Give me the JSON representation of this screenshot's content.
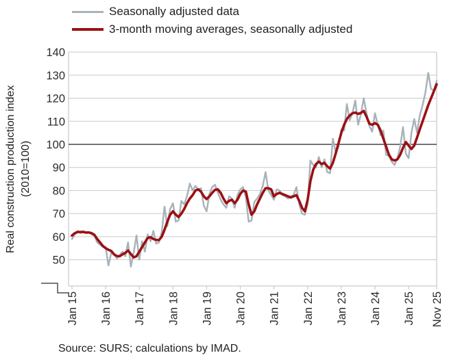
{
  "legend": {
    "items": [
      {
        "label": "Seasonally adjusted data",
        "color": "#a8b3ba"
      },
      {
        "label": "3-month moving averages, seasonally adjusted",
        "color": "#9b1014"
      }
    ]
  },
  "y_axis": {
    "title_line1": "Real construction production index",
    "title_line2": "(2010=100)",
    "ticks": [
      140,
      130,
      120,
      110,
      100,
      90,
      80,
      70,
      60,
      50
    ],
    "baseline_value": 100,
    "axis_break": true
  },
  "source": "Source: SURS; calculations by IMAD.",
  "colors": {
    "grid": "#c9c9c9",
    "baseline": "#44444c",
    "axis_text": "#2b2b2b",
    "break_mark": "#4d4d4d",
    "series_gray": "#a8b3ba",
    "series_red": "#9b1014"
  },
  "chart_data": {
    "type": "line",
    "title": "",
    "xlabel": "",
    "ylabel": "Real construction production index (2010=100)",
    "x_unit": "month",
    "n_months": 131,
    "x_start_label": "Jan 15",
    "x_end_label": "Nov 25",
    "ylim": [
      50,
      140
    ],
    "y_axis_break": true,
    "grid": "horizontal",
    "legend_position": "top-left",
    "baseline": 100,
    "x_ticks": [
      {
        "label": "Jan 15",
        "m": 0
      },
      {
        "label": "Jan 16",
        "m": 12
      },
      {
        "label": "Jan 17",
        "m": 24
      },
      {
        "label": "Jan 18",
        "m": 36
      },
      {
        "label": "Jan 19",
        "m": 48
      },
      {
        "label": "Jan 20",
        "m": 60
      },
      {
        "label": "Jan 21",
        "m": 72
      },
      {
        "label": "Jan 22",
        "m": 84
      },
      {
        "label": "Jan 23",
        "m": 96
      },
      {
        "label": "Jan 24",
        "m": 108
      },
      {
        "label": "Jan 25",
        "m": 120
      },
      {
        "label": "Nov 25",
        "m": 130
      }
    ],
    "series": [
      {
        "name": "Seasonally adjusted data",
        "color": "#a8b3ba",
        "width": 2.5,
        "values": [
          59,
          61,
          62.5,
          61.5,
          62.5,
          61.5,
          62,
          61,
          60.5,
          57.5,
          56.5,
          55.5,
          55.5,
          47.5,
          53,
          52.5,
          50.5,
          52,
          53.5,
          51.5,
          57.5,
          47,
          53,
          60.5,
          50,
          58,
          53.5,
          61,
          58,
          62.5,
          57,
          57.5,
          62,
          73,
          64.5,
          72,
          74.5,
          66.5,
          67,
          75.5,
          74,
          77.5,
          83,
          80,
          82,
          80.5,
          81,
          73.5,
          71,
          78.5,
          81.5,
          82.5,
          79,
          76,
          74,
          72.5,
          77.5,
          76.5,
          72.5,
          78,
          80.5,
          81.5,
          77,
          66.5,
          67,
          75,
          76.5,
          78.5,
          82,
          88,
          80,
          78,
          76,
          80.5,
          80,
          78,
          77.5,
          76.5,
          77.5,
          78,
          81.5,
          74,
          70,
          69.5,
          74,
          93,
          91,
          90,
          94.5,
          90,
          93.5,
          88,
          87.5,
          102.5,
          96.5,
          99,
          106.5,
          106,
          117.5,
          110.5,
          113.5,
          119,
          108.5,
          113,
          120,
          113.5,
          108,
          105.5,
          113.5,
          108.5,
          104,
          106,
          95.5,
          95,
          92.5,
          91,
          94,
          99,
          107.5,
          96,
          94,
          105,
          111,
          105,
          112.5,
          117,
          122.5,
          131,
          124,
          123.5,
          127.5
        ]
      },
      {
        "name": "3-month moving averages, seasonally adjusted",
        "color": "#9b1014",
        "width": 3.6,
        "values": [
          60.5,
          61.5,
          62,
          62,
          62,
          61.8,
          61.8,
          61.5,
          60.8,
          59,
          57.5,
          56,
          55,
          54.3,
          53.8,
          52.3,
          51.6,
          51.5,
          52.3,
          53,
          54,
          52.5,
          51,
          51.5,
          53.5,
          55.5,
          57.5,
          59.5,
          59.8,
          59,
          58.6,
          58.5,
          60,
          63,
          66.5,
          69.5,
          71,
          69.5,
          68.5,
          70,
          72,
          74.5,
          76.5,
          78,
          80,
          80.5,
          79.5,
          77.5,
          76.3,
          77.5,
          79,
          80.3,
          80.5,
          79,
          76.5,
          74.5,
          75.5,
          76,
          74.5,
          76,
          78.5,
          80,
          79.5,
          74,
          69.5,
          71,
          74,
          76.5,
          79,
          81,
          81,
          80.5,
          77.5,
          78.5,
          79,
          78.5,
          78,
          77.5,
          77,
          77.5,
          78,
          75.5,
          72.5,
          71,
          76,
          84,
          89,
          91.5,
          92.5,
          91.5,
          92,
          90.5,
          89.5,
          92,
          96,
          100.5,
          105,
          108.5,
          111,
          112.5,
          113.5,
          113.8,
          113.2,
          113.6,
          114.5,
          112,
          109,
          108.5,
          109.2,
          108.5,
          106,
          102.5,
          99,
          95.5,
          93.5,
          93,
          93.5,
          95.5,
          98.5,
          101,
          99.5,
          98,
          99.5,
          103,
          106.5,
          110,
          113.5,
          117,
          120,
          123,
          126
        ]
      }
    ]
  }
}
